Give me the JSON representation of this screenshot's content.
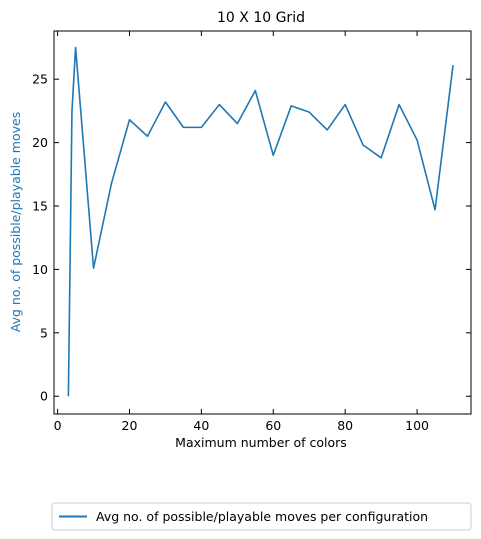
{
  "chart_data": {
    "type": "line",
    "title": "10 X 10 Grid",
    "xlabel": "Maximum number of colors",
    "ylabel": "Avg no. of possible/playable moves",
    "xlim": [
      -1,
      115
    ],
    "ylim": [
      -1.4,
      28.8
    ],
    "xticks": [
      0,
      20,
      40,
      60,
      80,
      100
    ],
    "yticks": [
      0,
      5,
      10,
      15,
      20,
      25
    ],
    "grid": false,
    "legend": "bottom-center",
    "series": [
      {
        "name": "Avg no. of possible/playable moves per configuration",
        "color": "#1f77b4",
        "x": [
          3,
          4,
          5,
          10,
          15,
          20,
          25,
          30,
          35,
          40,
          45,
          50,
          55,
          60,
          65,
          70,
          75,
          80,
          85,
          90,
          95,
          100,
          105,
          110
        ],
        "y": [
          0,
          22.5,
          27.5,
          10.1,
          16.8,
          21.8,
          20.5,
          23.2,
          21.2,
          21.2,
          23.0,
          21.5,
          24.1,
          19.0,
          22.9,
          22.4,
          21.0,
          23.0,
          19.8,
          18.8,
          23.0,
          20.2,
          14.7,
          26.1
        ]
      }
    ],
    "ylabel_color": "#1f77b4"
  }
}
